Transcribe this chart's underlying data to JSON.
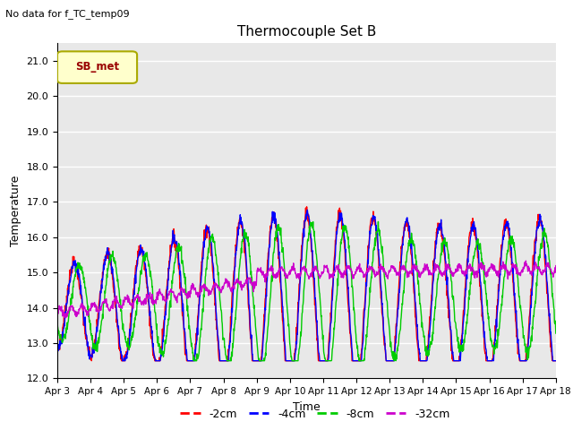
{
  "title": "Thermocouple Set B",
  "subtitle": "No data for f_TC_temp09",
  "ylabel": "Temperature",
  "xlabel": "Time",
  "legend_label": "SB_met",
  "ylim": [
    12.0,
    21.5
  ],
  "yticks": [
    12.0,
    13.0,
    14.0,
    15.0,
    16.0,
    17.0,
    18.0,
    19.0,
    20.0,
    21.0
  ],
  "xtick_labels": [
    "Apr 3",
    "Apr 4",
    "Apr 5",
    "Apr 6",
    "Apr 7",
    "Apr 8",
    "Apr 9",
    "Apr 10",
    "Apr 11",
    "Apr 12",
    "Apr 13",
    "Apr 14",
    "Apr 15",
    "Apr 16",
    "Apr 17",
    "Apr 18"
  ],
  "colors": {
    "-2cm": "#ff0000",
    "-4cm": "#0000ff",
    "-8cm": "#00cc00",
    "-32cm": "#cc00cc"
  },
  "line_labels": [
    "-2cm",
    "-4cm",
    "-8cm",
    "-32cm"
  ],
  "plot_bg_color": "#e8e8e8",
  "grid_color": "#ffffff",
  "legend_box_facecolor": "#ffffcc",
  "legend_box_edgecolor": "#aaaa00",
  "legend_text_color": "#990000",
  "n_points": 1500
}
